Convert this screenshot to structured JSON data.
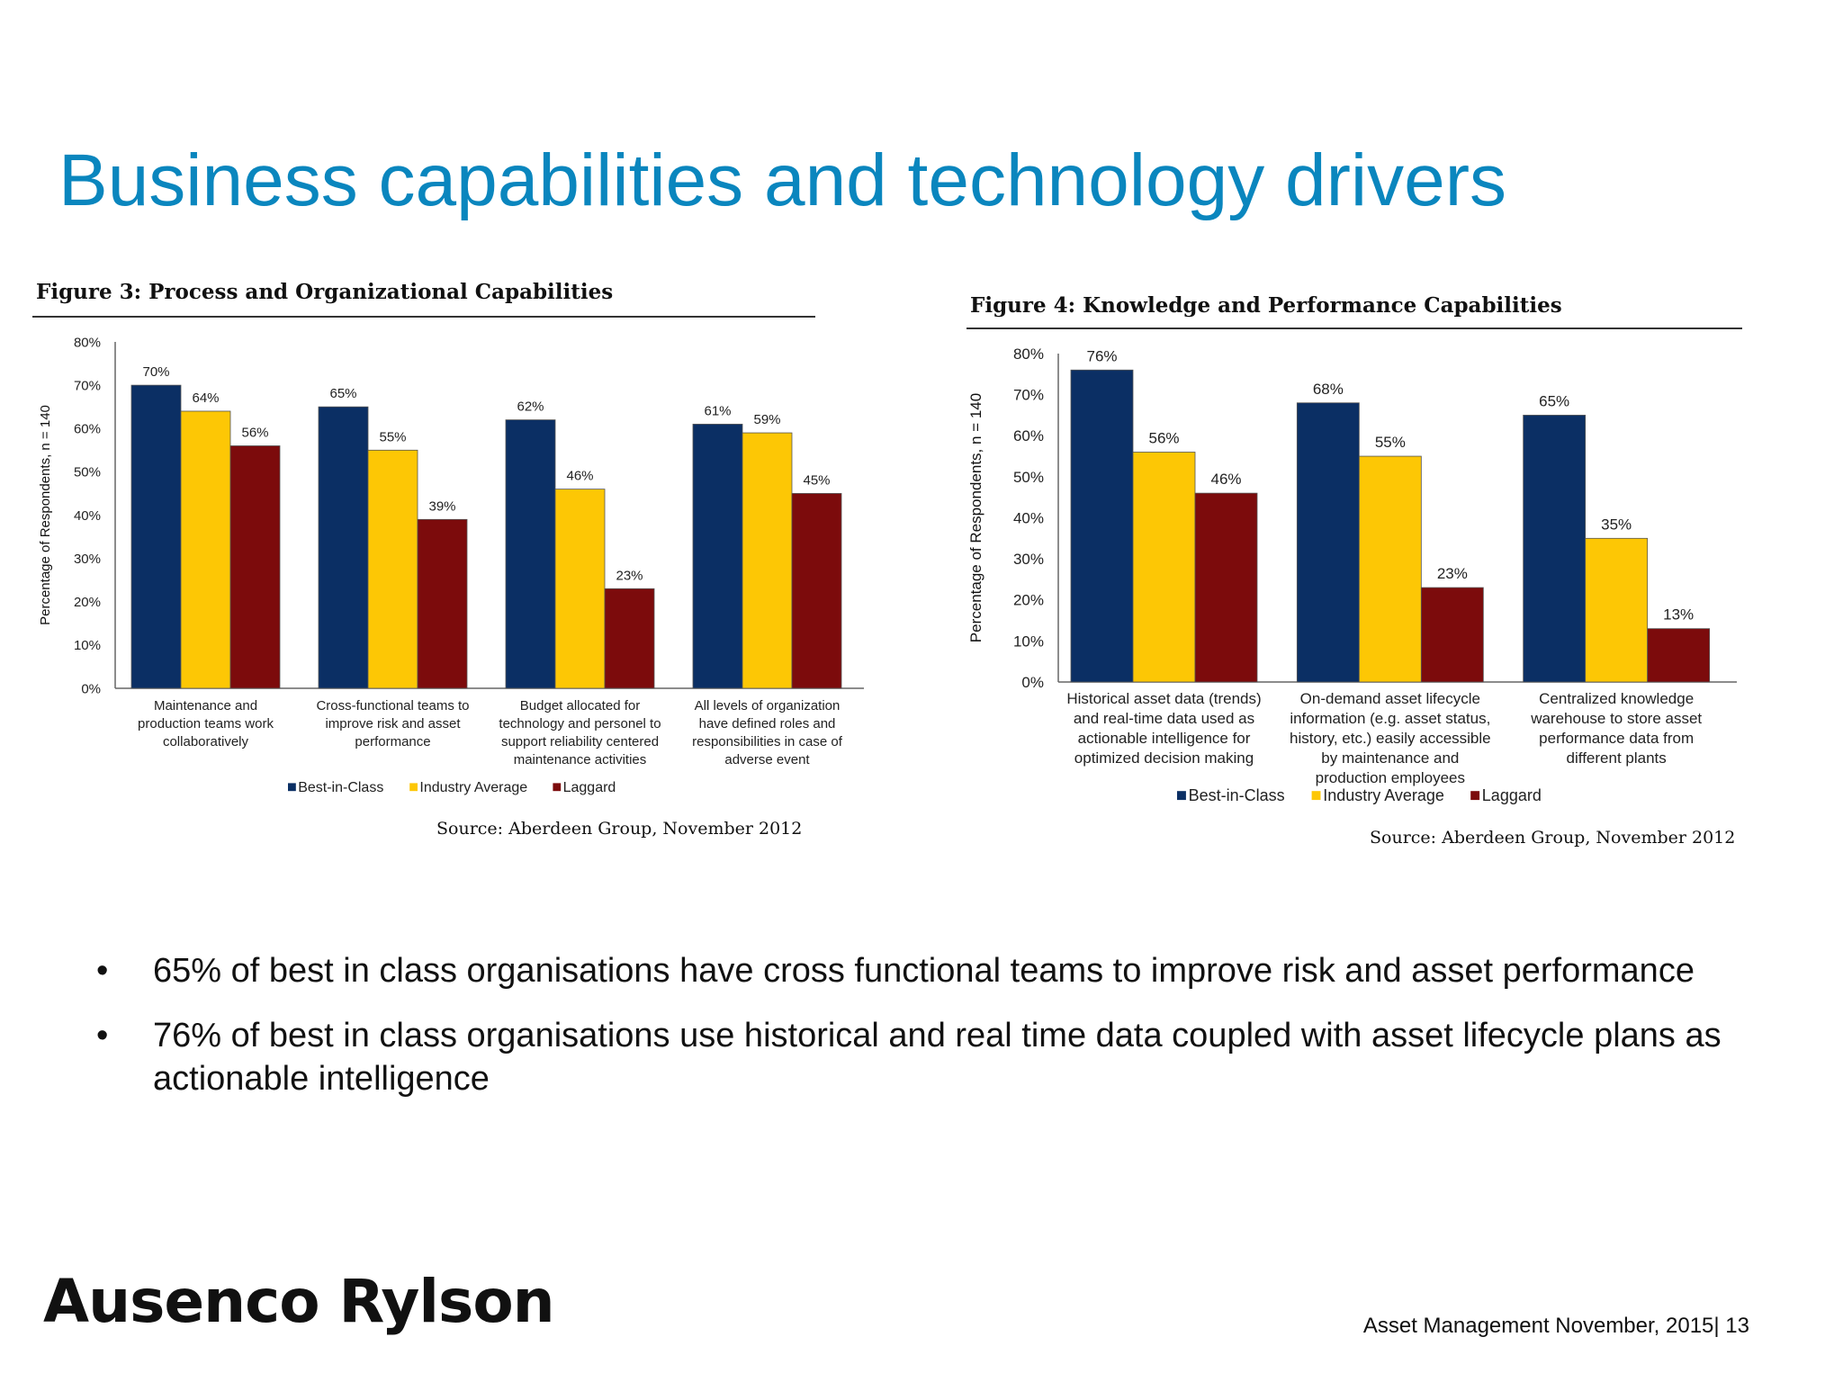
{
  "title": "Business capabilities and technology drivers",
  "colors": {
    "title": "#0a86be",
    "best_in_class": "#0b2f64",
    "industry_average": "#fdc705",
    "laggard": "#7c0b0c"
  },
  "chart_data": [
    {
      "type": "bar",
      "title": "Figure 3: Process and Organizational Capabilities",
      "ylabel": "Percentage of Respondents, n = 140",
      "xlabel": "",
      "ylim": [
        0,
        80
      ],
      "yticks": [
        "0%",
        "10%",
        "20%",
        "30%",
        "40%",
        "50%",
        "60%",
        "70%",
        "80%"
      ],
      "categories": [
        [
          "Maintenance and",
          "production teams work",
          "collaboratively"
        ],
        [
          "Cross-functional teams to",
          "improve risk and asset",
          "performance"
        ],
        [
          "Budget allocated for",
          "technology and personel to",
          "support reliability centered",
          "maintenance activities"
        ],
        [
          "All levels of organization",
          "have defined roles and",
          "responsibilities in case of",
          "adverse event"
        ]
      ],
      "series": [
        {
          "name": "Best-in-Class",
          "color": "#0b2f64",
          "values": [
            70,
            65,
            62,
            61
          ]
        },
        {
          "name": "Industry Average",
          "color": "#fdc705",
          "values": [
            64,
            55,
            46,
            59
          ]
        },
        {
          "name": "Laggard",
          "color": "#7c0b0c",
          "values": [
            56,
            39,
            23,
            45
          ]
        }
      ],
      "value_suffix": "%",
      "grid": false,
      "legend": "bottom",
      "source": "Source: Aberdeen Group, November 2012"
    },
    {
      "type": "bar",
      "title": "Figure 4: Knowledge and Performance Capabilities",
      "ylabel": "Percentage of Respondents, n = 140",
      "xlabel": "",
      "ylim": [
        0,
        80
      ],
      "yticks": [
        "0%",
        "10%",
        "20%",
        "30%",
        "40%",
        "50%",
        "60%",
        "70%",
        "80%"
      ],
      "categories": [
        [
          "Historical asset data (trends)",
          "and real-time data used as",
          "actionable intelligence for",
          "optimized decision making"
        ],
        [
          "On-demand asset lifecycle",
          "information (e.g. asset status,",
          "history, etc.) easily accessible",
          "by maintenance and",
          "production employees"
        ],
        [
          "Centralized knowledge",
          "warehouse to store asset",
          "performance data from",
          "different plants"
        ]
      ],
      "series": [
        {
          "name": "Best-in-Class",
          "color": "#0b2f64",
          "values": [
            76,
            68,
            65
          ]
        },
        {
          "name": "Industry Average",
          "color": "#fdc705",
          "values": [
            56,
            55,
            35
          ]
        },
        {
          "name": "Laggard",
          "color": "#7c0b0c",
          "values": [
            46,
            23,
            13
          ]
        }
      ],
      "value_suffix": "%",
      "grid": false,
      "legend": "bottom",
      "source": "Source: Aberdeen Group, November 2012"
    }
  ],
  "bullets": [
    "65% of best in class organisations have cross functional teams to improve risk and asset performance",
    "76% of best in class organisations use historical and real time data coupled with asset lifecycle plans as actionable intelligence"
  ],
  "bullet_symbol": "•",
  "logo_text": "Ausenco Rylson",
  "footer": "Asset Management  November, 2015|  13"
}
